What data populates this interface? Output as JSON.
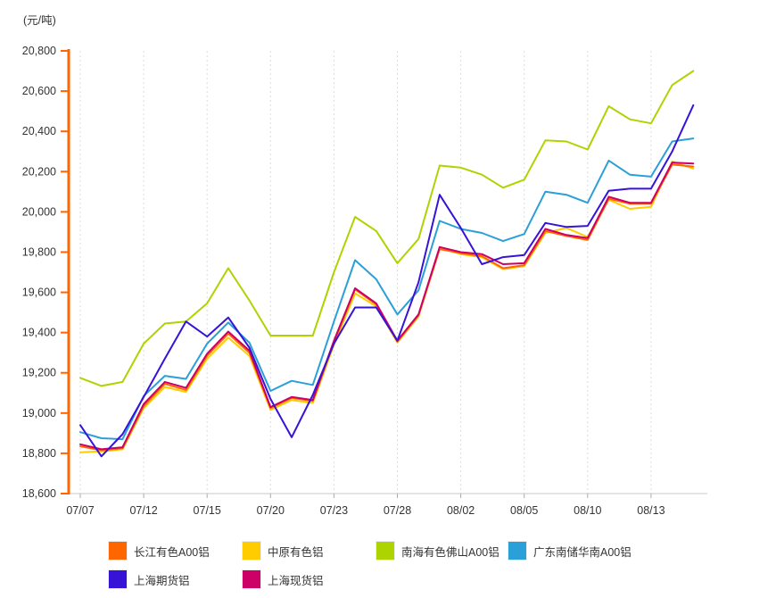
{
  "chart_data": {
    "type": "line",
    "unit_label": "(元/吨)",
    "ylim": [
      18600,
      20800
    ],
    "ytick_step": 200,
    "y_tick_labels": [
      "18,600",
      "18,800",
      "19,000",
      "19,200",
      "19,400",
      "19,600",
      "19,800",
      "20,000",
      "20,200",
      "20,400",
      "20,600",
      "20,800"
    ],
    "n_points": 30,
    "x_ticks": [
      {
        "index": 0,
        "label": "07/07"
      },
      {
        "index": 3,
        "label": "07/12"
      },
      {
        "index": 6,
        "label": "07/15"
      },
      {
        "index": 9,
        "label": "07/20"
      },
      {
        "index": 12,
        "label": "07/23"
      },
      {
        "index": 15,
        "label": "07/28"
      },
      {
        "index": 18,
        "label": "08/02"
      },
      {
        "index": 21,
        "label": "08/05"
      },
      {
        "index": 24,
        "label": "08/10"
      },
      {
        "index": 27,
        "label": "08/13"
      }
    ],
    "grid": "vertical-dashed",
    "legend_position": "bottom",
    "axis_colors": {
      "y_axis": "#FF6600",
      "x_axis": "#C8C8C8",
      "gridline": "#DCDCDC",
      "tick": "#AAAAAA",
      "text": "#333333"
    },
    "series": [
      {
        "id": "changjiang-a00-al",
        "name": "长江有色A00铝",
        "color": "#FF6600",
        "values": [
          18835,
          18815,
          18825,
          19035,
          19145,
          19115,
          19285,
          19395,
          19300,
          19025,
          19075,
          19060,
          19350,
          19615,
          19540,
          19355,
          19485,
          19815,
          19795,
          19780,
          19720,
          19735,
          19905,
          19880,
          19860,
          20065,
          20040,
          20040,
          20235,
          20225
        ]
      },
      {
        "id": "zhongyuan-al",
        "name": "中原有色铝",
        "color": "#FFCC00",
        "values": [
          18805,
          18810,
          18820,
          19025,
          19130,
          19105,
          19270,
          19375,
          19285,
          19015,
          19065,
          19050,
          19340,
          19595,
          19530,
          19350,
          19480,
          19820,
          19790,
          19775,
          19715,
          19730,
          19895,
          19920,
          19875,
          20060,
          20015,
          20025,
          20250,
          20215
        ]
      },
      {
        "id": "nanhai-foshan-a00-al",
        "name": "南海有色佛山A00铝",
        "color": "#ADD400",
        "values": [
          19175,
          19135,
          19155,
          19345,
          19445,
          19455,
          19545,
          19720,
          19560,
          19385,
          19385,
          19385,
          19700,
          19975,
          19905,
          19745,
          19865,
          20230,
          20220,
          20185,
          20120,
          20160,
          20355,
          20350,
          20310,
          20525,
          20460,
          20440,
          20630,
          20700
        ]
      },
      {
        "id": "guangdong-nanchu-a00-al",
        "name": "广东南储华南A00铝",
        "color": "#2B9FD8",
        "values": [
          18905,
          18875,
          18870,
          19085,
          19185,
          19170,
          19345,
          19450,
          19350,
          19110,
          19160,
          19140,
          19455,
          19760,
          19665,
          19490,
          19610,
          19955,
          19915,
          19895,
          19855,
          19890,
          20100,
          20085,
          20045,
          20255,
          20185,
          20175,
          20350,
          20365
        ]
      },
      {
        "id": "shanghai-futures-al",
        "name": "上海期货铝",
        "color": "#3713D8",
        "values": [
          18940,
          18785,
          18895,
          19080,
          19270,
          19455,
          19380,
          19475,
          19325,
          19070,
          18880,
          19090,
          19345,
          19525,
          19525,
          19360,
          19650,
          20085,
          19920,
          19740,
          19775,
          19785,
          19945,
          19925,
          19930,
          20105,
          20115,
          20115,
          20300,
          20530
        ]
      },
      {
        "id": "shanghai-spot-al",
        "name": "上海现货铝",
        "color": "#CC0066",
        "values": [
          18845,
          18820,
          18830,
          19045,
          19155,
          19125,
          19295,
          19405,
          19310,
          19030,
          19080,
          19065,
          19360,
          19620,
          19545,
          19360,
          19490,
          19825,
          19800,
          19790,
          19740,
          19745,
          19915,
          19885,
          19870,
          20075,
          20045,
          20045,
          20245,
          20240
        ]
      }
    ]
  }
}
